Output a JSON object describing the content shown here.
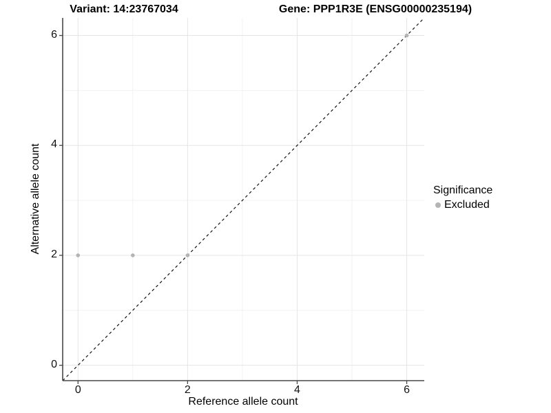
{
  "chart_data": {
    "type": "scatter",
    "title_variant": "Variant: 14:23767034",
    "title_gene": "Gene: PPP1R3E (ENSG00000235194)",
    "xlabel": "Reference allele count",
    "ylabel": "Alternative allele count",
    "xlim": [
      -0.28,
      6.32
    ],
    "ylim": [
      -0.28,
      6.32
    ],
    "x_ticks": [
      0,
      2,
      4,
      6
    ],
    "y_ticks": [
      0,
      2,
      4,
      6
    ],
    "x_minor_ticks": [
      1,
      3,
      5
    ],
    "y_minor_ticks": [
      1,
      3,
      5
    ],
    "grid": "major+minor",
    "legend_position": "right",
    "identity_line": {
      "equation": "y = x",
      "style": "dashed",
      "color": "#111111",
      "dash": [
        4,
        4
      ]
    },
    "series": [
      {
        "name": "Excluded",
        "color": "#b4b4b4",
        "point_radius": 2.8,
        "points": [
          [
            0,
            2
          ],
          [
            1,
            2
          ],
          [
            2,
            2
          ],
          [
            6,
            6
          ]
        ]
      }
    ],
    "legend": {
      "title": "Significance",
      "entries": [
        {
          "label": "Excluded",
          "color": "#b4b4b4"
        }
      ]
    }
  },
  "style": {
    "axis_color": "#464646",
    "grid_major_color": "#e5e5e5",
    "grid_minor_color": "#f2f2f2",
    "background": "#ffffff",
    "tick_length": 5
  }
}
